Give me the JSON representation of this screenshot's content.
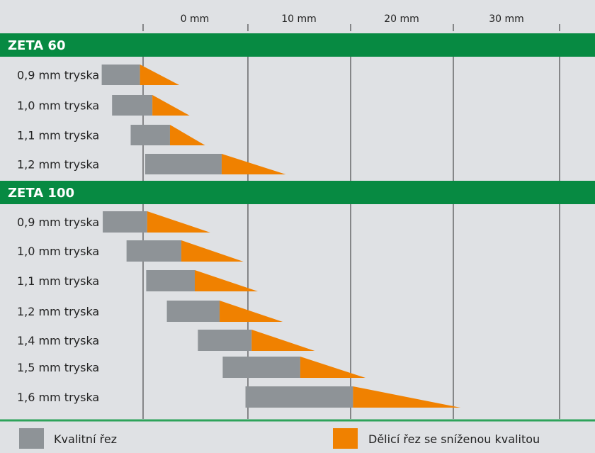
{
  "chart_data": {
    "type": "bar",
    "x_tick_labels": [
      "0 mm",
      "10 mm",
      "20 mm",
      "30 mm"
    ],
    "x_unit": "mm",
    "xlim": [
      -4,
      40
    ],
    "grid": true,
    "legend_placement": "bottom",
    "sections": [
      {
        "name": "ZETA 60",
        "rows": [
          {
            "label": "0,9 mm tryska",
            "quality_start": -4,
            "quality_end": -0.3,
            "reduced_end": 3.5
          },
          {
            "label": "1,0 mm tryska",
            "quality_start": -3.0,
            "quality_end": 0.9,
            "reduced_end": 4.5
          },
          {
            "label": "1,1 mm tryska",
            "quality_start": -1.2,
            "quality_end": 2.6,
            "reduced_end": 6.0
          },
          {
            "label": "1,2 mm tryska",
            "quality_start": 0.2,
            "quality_end": 7.6,
            "reduced_end": 13.8
          }
        ]
      },
      {
        "name": "ZETA 100",
        "rows": [
          {
            "label": "0,9 mm tryska",
            "quality_start": -3.9,
            "quality_end": 0.4,
            "reduced_end": 6.5
          },
          {
            "label": "1,0 mm tryska",
            "quality_start": -1.6,
            "quality_end": 3.7,
            "reduced_end": 9.7
          },
          {
            "label": "1,1 mm tryska",
            "quality_start": 0.3,
            "quality_end": 5.0,
            "reduced_end": 11.1
          },
          {
            "label": "1,2 mm tryska",
            "quality_start": 2.3,
            "quality_end": 7.4,
            "reduced_end": 13.5
          },
          {
            "label": "1,4 mm tryska",
            "quality_start": 5.3,
            "quality_end": 10.5,
            "reduced_end": 16.6
          },
          {
            "label": "1,5 mm tryska",
            "quality_start": 7.7,
            "quality_end": 15.2,
            "reduced_end": 21.5
          },
          {
            "label": "1,6 mm tryska",
            "quality_start": 9.9,
            "quality_end": 20.3,
            "reduced_end": 30.7
          }
        ]
      }
    ],
    "legend": [
      {
        "key": "quality",
        "label": "Kvalitní řez",
        "color": "#8e9397"
      },
      {
        "key": "reduced",
        "label": "Dělicí řez se sníženou kvalitou",
        "color": "#f08100"
      }
    ]
  },
  "colors": {
    "background": "#dfe1e4",
    "section_header": "#078a42",
    "section_title": "#ffffff",
    "quality_bar": "#8e9397",
    "reduced_bar": "#f08100",
    "grid": "#2b2b2b",
    "legend_separator": "#2ea35a"
  }
}
